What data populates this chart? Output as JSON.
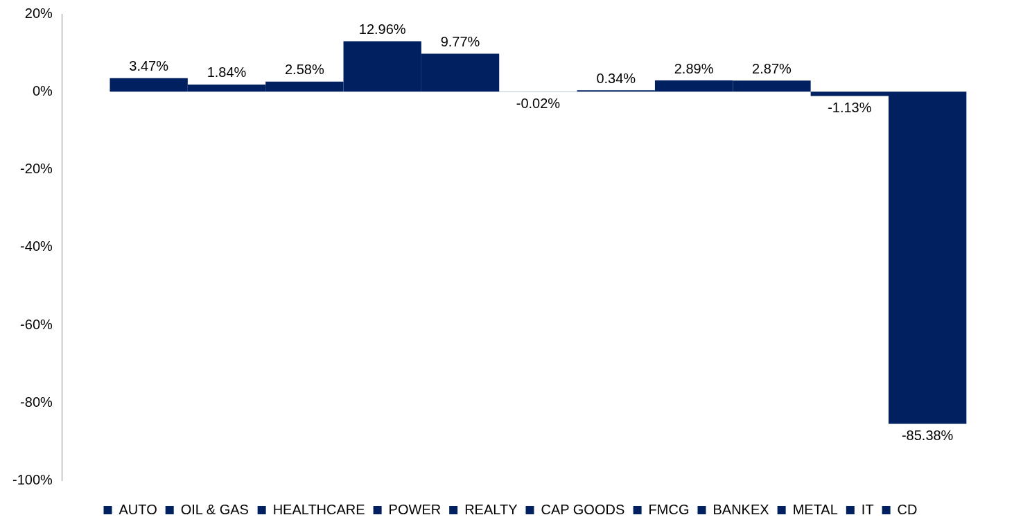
{
  "chart_data": {
    "type": "bar",
    "categories": [
      null
    ],
    "series": [
      {
        "name": "AUTO",
        "color": "#002060",
        "values": [
          3.47
        ],
        "value_labels": [
          "3.47%"
        ]
      },
      {
        "name": "OIL & GAS",
        "color": "#002060",
        "values": [
          1.84
        ],
        "value_labels": [
          "1.84%"
        ]
      },
      {
        "name": "HEALTHCARE",
        "color": "#002060",
        "values": [
          2.58
        ],
        "value_labels": [
          "2.58%"
        ]
      },
      {
        "name": "POWER",
        "color": "#002060",
        "values": [
          12.96
        ],
        "value_labels": [
          "12.96%"
        ]
      },
      {
        "name": "REALTY",
        "color": "#002060",
        "values": [
          9.77
        ],
        "value_labels": [
          "9.77%"
        ]
      },
      {
        "name": "CAP GOODS",
        "color": "#002060",
        "values": [
          -0.02
        ],
        "value_labels": [
          "-0.02%"
        ]
      },
      {
        "name": "FMCG",
        "color": "#002060",
        "values": [
          0.34
        ],
        "value_labels": [
          "0.34%"
        ]
      },
      {
        "name": "BANKEX",
        "color": "#002060",
        "values": [
          2.89
        ],
        "value_labels": [
          "2.89%"
        ]
      },
      {
        "name": "METAL",
        "color": "#002060",
        "values": [
          2.87
        ],
        "value_labels": [
          "2.87%"
        ]
      },
      {
        "name": "IT",
        "color": "#002060",
        "values": [
          -1.13
        ],
        "value_labels": [
          "-1.13%"
        ]
      },
      {
        "name": "CD",
        "color": "#002060",
        "values": [
          -85.38
        ],
        "value_labels": [
          "-85.38%"
        ]
      }
    ],
    "ylim": [
      -100,
      20
    ],
    "yticks": [
      {
        "value": -100,
        "label": "-100%"
      },
      {
        "value": -80,
        "label": "-80%"
      },
      {
        "value": -60,
        "label": "-60%"
      },
      {
        "value": -40,
        "label": "-40%"
      },
      {
        "value": -20,
        "label": "-20%"
      },
      {
        "value": 0,
        "label": "0%"
      },
      {
        "value": 20,
        "label": "20%"
      }
    ],
    "grid": false,
    "legend": "bottom"
  }
}
